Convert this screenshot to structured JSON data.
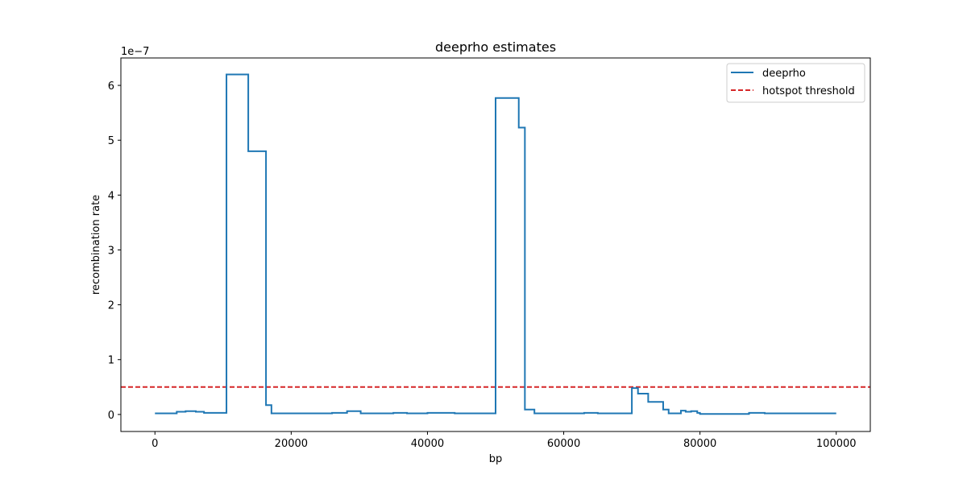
{
  "chart_data": {
    "type": "line",
    "title": "deeprho estimates",
    "xlabel": "bp",
    "ylabel": "recombination rate",
    "y_offset_label": "1e−7",
    "y_scale": 1e-07,
    "xlim": [
      -5000,
      105000
    ],
    "ylim": [
      -0.31,
      6.5
    ],
    "x_ticks": [
      0,
      20000,
      40000,
      60000,
      80000,
      100000
    ],
    "x_tick_labels": [
      "0",
      "20000",
      "40000",
      "60000",
      "80000",
      "100000"
    ],
    "y_ticks": [
      0,
      1,
      2,
      3,
      4,
      5,
      6
    ],
    "y_tick_labels": [
      "0",
      "1",
      "2",
      "3",
      "4",
      "5",
      "6"
    ],
    "grid": false,
    "legend": {
      "location": "top-right",
      "entries": [
        {
          "label": "deeprho",
          "color": "#1f77b4",
          "style": "solid"
        },
        {
          "label": "hotspot threshold",
          "color": "#d62728",
          "style": "dashed"
        }
      ]
    },
    "series": [
      {
        "name": "deeprho",
        "color": "#1f77b4",
        "drawstyle": "steps-post",
        "x": [
          0,
          3200,
          4500,
          6000,
          7200,
          10500,
          13700,
          16300,
          17100,
          22000,
          26000,
          28200,
          30200,
          35000,
          37000,
          40000,
          44000,
          50000,
          53400,
          54300,
          55700,
          58000,
          63000,
          65000,
          70000,
          70900,
          72400,
          74600,
          75400,
          77200,
          77900,
          78700,
          79600,
          80000,
          87200,
          89500,
          100000
        ],
        "y": [
          0.02,
          0.05,
          0.06,
          0.05,
          0.03,
          6.2,
          4.8,
          0.17,
          0.02,
          0.02,
          0.03,
          0.06,
          0.02,
          0.03,
          0.02,
          0.03,
          0.02,
          5.77,
          5.23,
          0.09,
          0.02,
          0.02,
          0.03,
          0.02,
          0.48,
          0.38,
          0.23,
          0.09,
          0.02,
          0.07,
          0.05,
          0.06,
          0.03,
          0.01,
          0.03,
          0.02,
          0.02
        ]
      },
      {
        "name": "hotspot threshold",
        "color": "#d62728",
        "style": "dashed",
        "y_constant": 0.5
      }
    ]
  }
}
